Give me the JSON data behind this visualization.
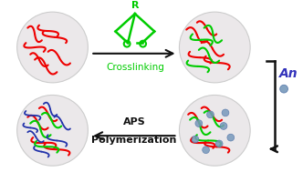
{
  "bg_color": "#ffffff",
  "circle_facecolor": "#ebe8ea",
  "circle_edge": "#cccccc",
  "red_color": "#ee0000",
  "green_color": "#00cc00",
  "blue_color": "#3344bb",
  "blue_line_color": "#2233aa",
  "arrow_color": "#111111",
  "crosslink_label_color": "#00cc00",
  "aps_label_color": "#111111",
  "an_label_color": "#3333bb",
  "dot_color": "#7799bb",
  "crosslink_text": "Crosslinking",
  "aps_text1": "APS",
  "aps_text2": "Polymerization",
  "an_text": "An",
  "figw": 3.32,
  "figh": 1.89,
  "dpi": 100
}
